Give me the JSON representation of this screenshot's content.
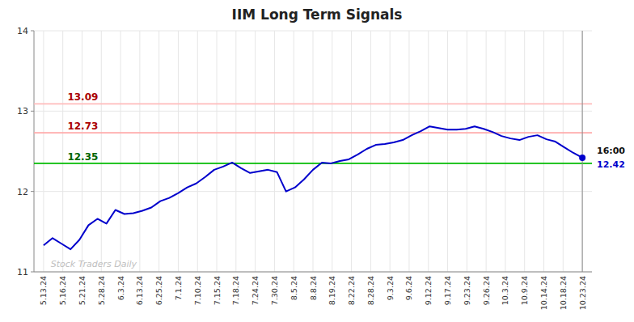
{
  "chart_data": {
    "type": "line",
    "title": "IIM Long Term Signals",
    "x": [
      0,
      0.4667,
      0.9333,
      1.4,
      1.8667,
      2.3333,
      2.8,
      3.2667,
      3.7333,
      4.2,
      4.6667,
      5.1333,
      5.6,
      6.0667,
      6.5333,
      7,
      7.4667,
      7.9333,
      8.4,
      8.8667,
      9.3333,
      9.8,
      10.2667,
      10.7333,
      11.2,
      11.6667,
      12.1333,
      12.6,
      13.0667,
      13.5333,
      14,
      14.4667,
      14.9333,
      15.4,
      15.8667,
      16.3333,
      16.8,
      17.2667,
      17.7333,
      18.2,
      18.6667,
      19.1333,
      19.6,
      20.0667,
      20.5333,
      21,
      21.4667,
      21.9333,
      22.4,
      22.8667,
      23.3333,
      23.8,
      24.2667,
      24.7333,
      25.2,
      25.6667,
      26.1333,
      26.6,
      27.0667,
      27.5333,
      28
    ],
    "series": [
      {
        "color": "#0000cc",
        "values": [
          11.33,
          11.42,
          11.35,
          11.28,
          11.4,
          11.58,
          11.66,
          11.6,
          11.77,
          11.72,
          11.73,
          11.76,
          11.8,
          11.88,
          11.92,
          11.98,
          12.05,
          12.1,
          12.18,
          12.27,
          12.31,
          12.36,
          12.29,
          12.23,
          12.25,
          12.27,
          12.24,
          12.0,
          12.05,
          12.15,
          12.27,
          12.36,
          12.35,
          12.38,
          12.4,
          12.46,
          12.53,
          12.58,
          12.59,
          12.61,
          12.64,
          12.7,
          12.75,
          12.81,
          12.79,
          12.77,
          12.77,
          12.78,
          12.81,
          12.78,
          12.74,
          12.69,
          12.66,
          12.64,
          12.68,
          12.7,
          12.65,
          12.62,
          12.55,
          12.48,
          12.42
        ]
      }
    ],
    "xlim": [
      -0.5,
      28.5
    ],
    "xticks": [
      {
        "value": 0,
        "label": "5.13.24"
      },
      {
        "value": 1,
        "label": "5.16.24"
      },
      {
        "value": 2,
        "label": "5.21.24"
      },
      {
        "value": 3,
        "label": "5.28.24"
      },
      {
        "value": 4,
        "label": "6.3.24"
      },
      {
        "value": 5,
        "label": "6.13.24"
      },
      {
        "value": 6,
        "label": "6.25.24"
      },
      {
        "value": 7,
        "label": "7.1.24"
      },
      {
        "value": 8,
        "label": "7.10.24"
      },
      {
        "value": 9,
        "label": "7.15.24"
      },
      {
        "value": 10,
        "label": "7.18.24"
      },
      {
        "value": 11,
        "label": "7.24.24"
      },
      {
        "value": 12,
        "label": "7.30.24"
      },
      {
        "value": 13,
        "label": "8.5.24"
      },
      {
        "value": 14,
        "label": "8.8.24"
      },
      {
        "value": 15,
        "label": "8.19.24"
      },
      {
        "value": 16,
        "label": "8.22.24"
      },
      {
        "value": 17,
        "label": "8.28.24"
      },
      {
        "value": 18,
        "label": "9.3.24"
      },
      {
        "value": 19,
        "label": "9.6.24"
      },
      {
        "value": 20,
        "label": "9.12.24"
      },
      {
        "value": 21,
        "label": "9.17.24"
      },
      {
        "value": 22,
        "label": "9.23.24"
      },
      {
        "value": 23,
        "label": "9.26.24"
      },
      {
        "value": 24,
        "label": "10.3.24"
      },
      {
        "value": 25,
        "label": "10.9.24"
      },
      {
        "value": 26,
        "label": "10.14.24"
      },
      {
        "value": 27,
        "label": "10.18.24"
      },
      {
        "value": 28,
        "label": "10.23.24"
      }
    ],
    "ylim": [
      11,
      14
    ],
    "yticks": [
      11,
      12,
      13,
      14
    ],
    "grid": true,
    "reference_lines": [
      {
        "value": 12.35,
        "color": "#00bb00",
        "label": "12.35",
        "label_color": "#006600"
      },
      {
        "value": 12.73,
        "color": "#ffaaaa",
        "label": "12.73",
        "label_color": "#aa0000"
      },
      {
        "value": 13.09,
        "color": "#ffbbbb",
        "label": "13.09",
        "label_color": "#aa0000"
      }
    ],
    "vertical_lines": [
      {
        "value": 28,
        "color": "#888888"
      }
    ],
    "annotations": [
      {
        "text": "16:00"
      },
      {
        "text": "12.42",
        "color": "#0000cc"
      },
      {
        "text": "Stock Traders Daily",
        "color": "#c0c0c0"
      }
    ]
  }
}
